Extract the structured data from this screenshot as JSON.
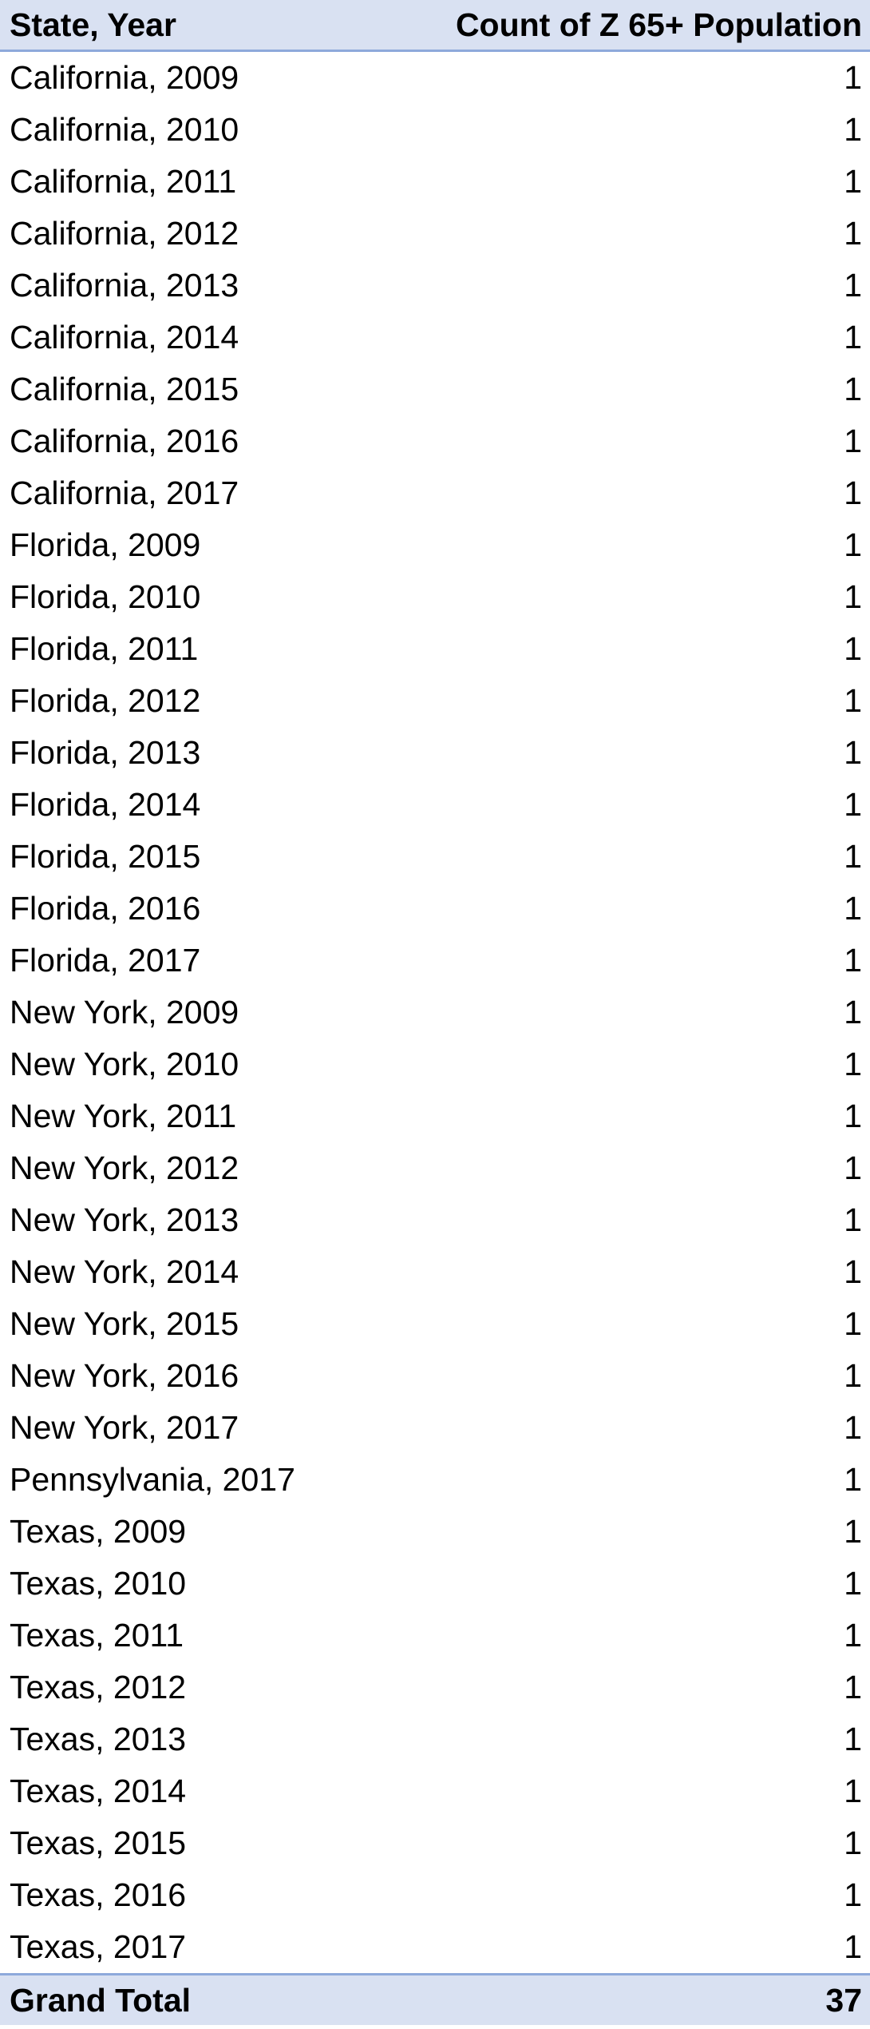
{
  "table": {
    "header": {
      "label": "State, Year",
      "value": "Count of Z  65+ Population"
    },
    "rows": [
      {
        "label": "California, 2009",
        "value": "1"
      },
      {
        "label": "California, 2010",
        "value": "1"
      },
      {
        "label": "California, 2011",
        "value": "1"
      },
      {
        "label": "California, 2012",
        "value": "1"
      },
      {
        "label": "California, 2013",
        "value": "1"
      },
      {
        "label": "California, 2014",
        "value": "1"
      },
      {
        "label": "California, 2015",
        "value": "1"
      },
      {
        "label": "California, 2016",
        "value": "1"
      },
      {
        "label": "California, 2017",
        "value": "1"
      },
      {
        "label": "Florida, 2009",
        "value": "1"
      },
      {
        "label": "Florida, 2010",
        "value": "1"
      },
      {
        "label": "Florida, 2011",
        "value": "1"
      },
      {
        "label": "Florida, 2012",
        "value": "1"
      },
      {
        "label": "Florida, 2013",
        "value": "1"
      },
      {
        "label": "Florida, 2014",
        "value": "1"
      },
      {
        "label": "Florida, 2015",
        "value": "1"
      },
      {
        "label": "Florida, 2016",
        "value": "1"
      },
      {
        "label": "Florida, 2017",
        "value": "1"
      },
      {
        "label": "New York, 2009",
        "value": "1"
      },
      {
        "label": "New York, 2010",
        "value": "1"
      },
      {
        "label": "New York, 2011",
        "value": "1"
      },
      {
        "label": "New York, 2012",
        "value": "1"
      },
      {
        "label": "New York, 2013",
        "value": "1"
      },
      {
        "label": "New York, 2014",
        "value": "1"
      },
      {
        "label": "New York, 2015",
        "value": "1"
      },
      {
        "label": "New York, 2016",
        "value": "1"
      },
      {
        "label": "New York, 2017",
        "value": "1"
      },
      {
        "label": "Pennsylvania, 2017",
        "value": "1"
      },
      {
        "label": "Texas, 2009",
        "value": "1"
      },
      {
        "label": "Texas, 2010",
        "value": "1"
      },
      {
        "label": "Texas, 2011",
        "value": "1"
      },
      {
        "label": "Texas, 2012",
        "value": "1"
      },
      {
        "label": "Texas, 2013",
        "value": "1"
      },
      {
        "label": "Texas, 2014",
        "value": "1"
      },
      {
        "label": "Texas, 2015",
        "value": "1"
      },
      {
        "label": "Texas, 2016",
        "value": "1"
      },
      {
        "label": "Texas, 2017",
        "value": "1"
      }
    ],
    "total": {
      "label": "Grand Total",
      "value": "37"
    }
  },
  "colors": {
    "header_fill": "#d9e1f2",
    "header_border": "#8ea9db",
    "text": "#000000"
  }
}
